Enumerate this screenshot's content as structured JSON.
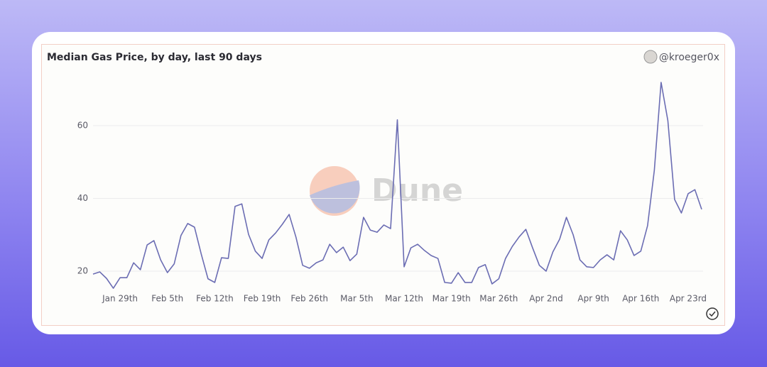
{
  "chart_data": {
    "type": "line",
    "title": "Median Gas Price, by day, last 90 days",
    "author": "@kroeger0x",
    "watermark": "Dune",
    "categories": [
      null,
      null,
      null,
      null,
      "Jan 29th",
      null,
      null,
      null,
      null,
      null,
      null,
      "Feb 5th",
      null,
      null,
      null,
      null,
      null,
      null,
      "Feb 12th",
      null,
      null,
      null,
      null,
      null,
      null,
      "Feb 19th",
      null,
      null,
      null,
      null,
      null,
      null,
      "Feb 26th",
      null,
      null,
      null,
      null,
      null,
      null,
      "Mar 5th",
      null,
      null,
      null,
      null,
      null,
      null,
      "Mar 12th",
      null,
      null,
      null,
      null,
      null,
      null,
      "Mar 19th",
      null,
      null,
      null,
      null,
      null,
      null,
      "Mar 26th",
      null,
      null,
      null,
      null,
      null,
      null,
      "Apr 2nd",
      null,
      null,
      null,
      null,
      null,
      null,
      "Apr 9th",
      null,
      null,
      null,
      null,
      null,
      null,
      "Apr 16th",
      null,
      null,
      null,
      null,
      null,
      null,
      "Apr 23rd",
      null,
      null
    ],
    "values": [
      19.2,
      19.8,
      18.0,
      15.3,
      18.2,
      18.2,
      22.3,
      20.4,
      27.2,
      28.4,
      23.1,
      19.6,
      22.0,
      29.8,
      33.1,
      32.1,
      24.7,
      17.9,
      16.9,
      23.7,
      23.5,
      37.8,
      38.5,
      30.1,
      25.5,
      23.5,
      28.6,
      30.5,
      32.9,
      35.6,
      29.4,
      21.6,
      20.8,
      22.3,
      23.1,
      27.4,
      25.1,
      26.6,
      22.9,
      24.7,
      34.8,
      31.3,
      30.7,
      32.7,
      31.7,
      61.6,
      21.2,
      26.4,
      27.4,
      25.7,
      24.3,
      23.5,
      16.9,
      16.7,
      19.6,
      16.9,
      16.9,
      21.0,
      21.8,
      16.5,
      17.9,
      23.5,
      26.8,
      29.4,
      31.5,
      26.4,
      21.6,
      20.0,
      25.3,
      28.8,
      34.8,
      30.0,
      23.1,
      21.2,
      21.0,
      23.1,
      24.5,
      23.1,
      31.1,
      28.6,
      24.3,
      25.5,
      32.5,
      47.7,
      71.9,
      61.4,
      39.7,
      36.0,
      41.3,
      42.4,
      37.0
    ],
    "color": "#6b6db3",
    "ylim": [
      14,
      74
    ],
    "yticks": [
      20,
      40,
      60
    ],
    "grid": true
  }
}
